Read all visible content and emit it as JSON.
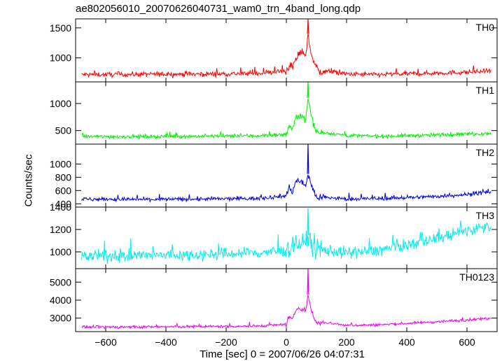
{
  "chart_data": {
    "type": "line",
    "title": "ae802056010_20070626040731_wam0_trn_4band_long.qdp",
    "xlabel": "Time [sec] 0 = 2007/06/26 04:07:31",
    "ylabel": "Counts/sec",
    "xlim": [
      -700,
      700
    ],
    "xticks": [
      -600,
      -400,
      -200,
      0,
      200,
      400,
      600
    ],
    "xtick_labels": [
      "−600",
      "−400",
      "−200",
      "0",
      "200",
      "400",
      "600"
    ],
    "grid": false,
    "series": [
      {
        "name": "TH0",
        "color": "#ff0000",
        "ylim": [
          600,
          1650
        ],
        "yticks": [
          1000,
          1500
        ],
        "profile": {
          "x": [
            -680,
            -500,
            -300,
            -100,
            0,
            10,
            20,
            30,
            40,
            55,
            65,
            72,
            80,
            95,
            110,
            120,
            200,
            300,
            450,
            600,
            680
          ],
          "y": [
            720,
            725,
            730,
            740,
            780,
            900,
            820,
            950,
            1050,
            1100,
            1050,
            1400,
            1120,
            880,
            760,
            790,
            730,
            720,
            740,
            760,
            780
          ]
        },
        "peak": {
          "x": 72,
          "y": 1650
        },
        "noise": 30
      },
      {
        "name": "TH1",
        "color": "#00ee00",
        "ylim": [
          250,
          1400
        ],
        "yticks": [
          500,
          1000
        ],
        "profile": {
          "x": [
            -680,
            -500,
            -300,
            -100,
            0,
            10,
            20,
            30,
            40,
            55,
            65,
            72,
            80,
            95,
            110,
            120,
            200,
            300,
            450,
            600,
            680
          ],
          "y": [
            390,
            390,
            395,
            405,
            430,
            600,
            500,
            700,
            800,
            750,
            700,
            1100,
            850,
            520,
            450,
            470,
            410,
            395,
            410,
            440,
            450
          ]
        },
        "peak": {
          "x": 72,
          "y": 1400
        },
        "noise": 25
      },
      {
        "name": "TH2",
        "color": "#0000dd",
        "ylim": [
          350,
          1300
        ],
        "yticks": [
          400,
          600,
          800,
          1000
        ],
        "profile": {
          "x": [
            -680,
            -500,
            -300,
            -100,
            0,
            10,
            20,
            30,
            40,
            55,
            65,
            72,
            80,
            95,
            110,
            120,
            200,
            300,
            450,
            600,
            680
          ],
          "y": [
            470,
            465,
            470,
            480,
            520,
            650,
            580,
            720,
            760,
            700,
            680,
            850,
            720,
            540,
            480,
            500,
            470,
            480,
            500,
            540,
            580
          ]
        },
        "peak": {
          "x": 72,
          "y": 1300
        },
        "noise": 22
      },
      {
        "name": "TH3",
        "color": "#00eeee",
        "ylim": [
          850,
          1400
        ],
        "yticks": [
          1000,
          1200,
          1400
        ],
        "profile": {
          "x": [
            -680,
            -500,
            -300,
            -100,
            0,
            30,
            60,
            72,
            90,
            120,
            200,
            300,
            400,
            500,
            600,
            680
          ],
          "y": [
            960,
            965,
            975,
            990,
            1010,
            1080,
            1060,
            1150,
            1040,
            1020,
            990,
            1010,
            1060,
            1120,
            1190,
            1240
          ]
        },
        "peak": {
          "x": 72,
          "y": 1390
        },
        "noise": 38
      },
      {
        "name": "TH0123",
        "color": "#ee00ee",
        "ylim": [
          2250,
          5750
        ],
        "yticks": [
          3000,
          4000,
          5000
        ],
        "profile": {
          "x": [
            -680,
            -500,
            -300,
            -100,
            0,
            10,
            20,
            30,
            40,
            55,
            65,
            72,
            80,
            95,
            110,
            120,
            200,
            300,
            450,
            600,
            680
          ],
          "y": [
            2500,
            2510,
            2530,
            2560,
            2650,
            3100,
            2850,
            3400,
            3600,
            3500,
            3450,
            4300,
            3600,
            2850,
            2700,
            2780,
            2600,
            2620,
            2750,
            2900,
            3000
          ]
        },
        "peak": {
          "x": 72,
          "y": 5750
        },
        "noise": 55
      }
    ]
  }
}
